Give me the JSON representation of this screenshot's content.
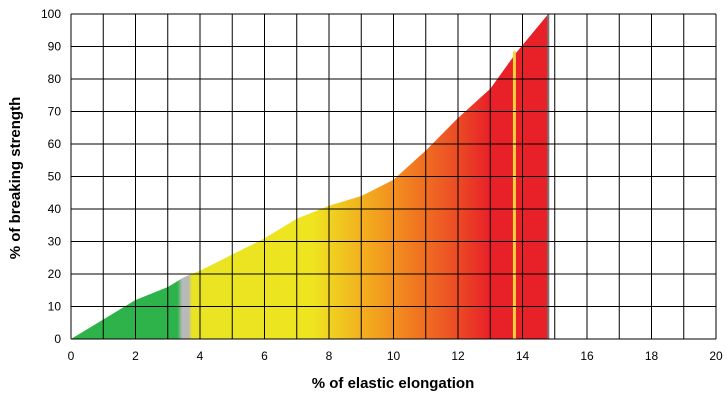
{
  "chart_data": {
    "type": "area",
    "xlabel": "% of elastic elongation",
    "ylabel": "% of breaking strength",
    "xlim": [
      0,
      20
    ],
    "ylim": [
      0,
      100
    ],
    "xticks": [
      0,
      2,
      4,
      6,
      8,
      10,
      12,
      14,
      16,
      18,
      20
    ],
    "yticks": [
      0,
      10,
      20,
      30,
      40,
      50,
      60,
      70,
      80,
      90,
      100
    ],
    "grid": true,
    "series": [
      {
        "x": [
          0,
          1,
          2,
          3,
          3.5,
          4,
          5,
          6,
          7,
          8,
          9,
          10,
          11,
          12,
          13,
          13.8,
          14.8
        ],
        "y": [
          0,
          6,
          12,
          16,
          19,
          21,
          26,
          31,
          37,
          41,
          44,
          49,
          58,
          68,
          77,
          88,
          100
        ]
      }
    ],
    "colors": {
      "green": "#2db34a",
      "yellow": "#e9e422",
      "orange": "#f38f1e",
      "red": "#e82028",
      "grid": "#000000"
    }
  }
}
